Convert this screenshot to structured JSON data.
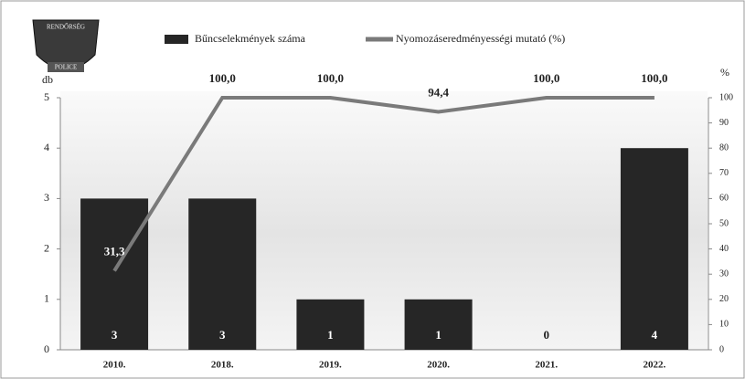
{
  "logo": {
    "top": "RENDŐRSÉG",
    "bottom": "POLICE"
  },
  "chart_data": {
    "type": "bar",
    "categories": [
      "2010.",
      "2018.",
      "2019.",
      "2020.",
      "2021.",
      "2022."
    ],
    "series": [
      {
        "name": "Bűncselekmények száma",
        "type": "bar",
        "color": "#262626",
        "values": [
          3,
          3,
          1,
          1,
          0,
          4
        ]
      },
      {
        "name": "Nyomozáseredményességi mutató (%)",
        "type": "line",
        "axis": "y2",
        "color": "#7a7a7a",
        "values": [
          31.3,
          100,
          100,
          94.4,
          100,
          100
        ],
        "value_labels": [
          "31,3",
          "100,0",
          "100,0",
          "94,4",
          "100,0",
          "100,0"
        ]
      }
    ],
    "y_label": "db",
    "y2_label": "%",
    "ylim": [
      0,
      5
    ],
    "yticks": [
      0,
      1,
      2,
      3,
      4,
      5
    ],
    "y2lim": [
      0,
      100
    ],
    "y2ticks": [
      0,
      10,
      20,
      30,
      40,
      50,
      60,
      70,
      80,
      90,
      100
    ]
  }
}
